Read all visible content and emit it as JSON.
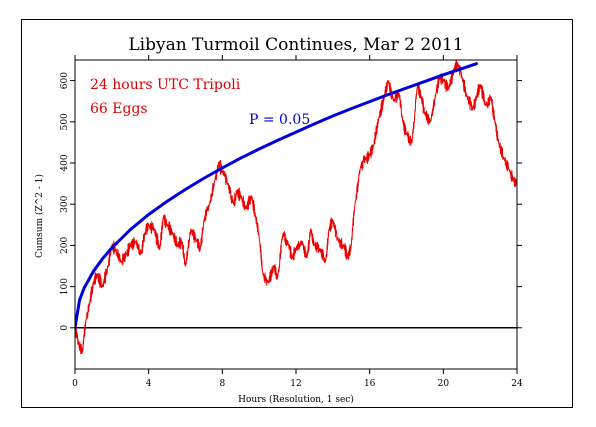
{
  "chart_data": {
    "type": "line",
    "title": "Libyan Turmoil Continues, Mar 2 2011",
    "xlabel": "Hours (Resolution, 1 sec)",
    "ylabel": "Cumsum (Z^2 - 1)",
    "xlim": [
      0,
      24
    ],
    "ylim": [
      -100,
      650
    ],
    "xticks": [
      0,
      4,
      8,
      12,
      16,
      20,
      24
    ],
    "yticks": [
      0,
      100,
      200,
      300,
      400,
      500,
      600
    ],
    "grid": false,
    "annotations": [
      {
        "text": "24 hours UTC Tripoli",
        "color": "#dd0000"
      },
      {
        "text": "66 Eggs",
        "color": "#dd0000"
      },
      {
        "text": "P = 0.05",
        "color": "#0000cc"
      }
    ],
    "series": [
      {
        "color": "#ee0000",
        "x": [
          0,
          0.2,
          0.4,
          0.6,
          0.8,
          1.0,
          1.2,
          1.5,
          1.8,
          2.0,
          2.2,
          2.5,
          2.8,
          3.0,
          3.3,
          3.6,
          3.8,
          4.0,
          4.3,
          4.6,
          4.8,
          5.0,
          5.3,
          5.6,
          5.8,
          6.0,
          6.3,
          6.6,
          6.8,
          7.0,
          7.3,
          7.6,
          7.8,
          8.0,
          8.3,
          8.6,
          8.8,
          9.0,
          9.3,
          9.6,
          9.8,
          10.0,
          10.2,
          10.5,
          10.8,
          11.0,
          11.3,
          11.6,
          11.8,
          12.0,
          12.3,
          12.6,
          12.8,
          13.0,
          13.3,
          13.6,
          13.8,
          14.0,
          14.3,
          14.6,
          14.8,
          15.0,
          15.2,
          15.5,
          15.8,
          16.0,
          16.2,
          16.5,
          16.8,
          17.0,
          17.3,
          17.6,
          17.8,
          18.0,
          18.3,
          18.6,
          18.8,
          19.0,
          19.3,
          19.6,
          19.8,
          20.0,
          20.3,
          20.6,
          20.8,
          21.0,
          21.3,
          21.6,
          21.8,
          22.0,
          22.3,
          22.6,
          22.8,
          23.0,
          23.3,
          23.6,
          23.8,
          24.0
        ],
        "y": [
          0,
          -40,
          -60,
          20,
          60,
          110,
          130,
          100,
          150,
          200,
          190,
          160,
          180,
          200,
          210,
          180,
          230,
          250,
          240,
          190,
          270,
          250,
          230,
          200,
          210,
          150,
          240,
          210,
          190,
          260,
          300,
          360,
          400,
          380,
          350,
          300,
          330,
          320,
          290,
          320,
          270,
          220,
          130,
          110,
          150,
          120,
          230,
          200,
          170,
          190,
          210,
          170,
          240,
          200,
          190,
          160,
          240,
          260,
          210,
          200,
          170,
          200,
          300,
          390,
          410,
          420,
          440,
          510,
          560,
          600,
          550,
          570,
          500,
          470,
          450,
          590,
          560,
          520,
          500,
          570,
          610,
          600,
          580,
          630,
          640,
          610,
          560,
          530,
          560,
          590,
          540,
          560,
          500,
          450,
          410,
          380,
          360,
          350
        ]
      }
    ],
    "envelope": {
      "color": "#0000dd",
      "x": [
        0,
        0.25,
        0.5,
        1,
        1.5,
        2,
        3,
        4,
        5,
        6,
        7,
        8,
        9,
        10,
        11,
        12,
        13,
        14,
        15,
        16,
        17,
        18,
        19,
        20,
        21,
        21.8
      ],
      "y": [
        0,
        68,
        97,
        137,
        168,
        194,
        238,
        275,
        307,
        336,
        363,
        388,
        412,
        434,
        455,
        475,
        495,
        514,
        532,
        549,
        566,
        582,
        598,
        614,
        629,
        641
      ]
    }
  }
}
